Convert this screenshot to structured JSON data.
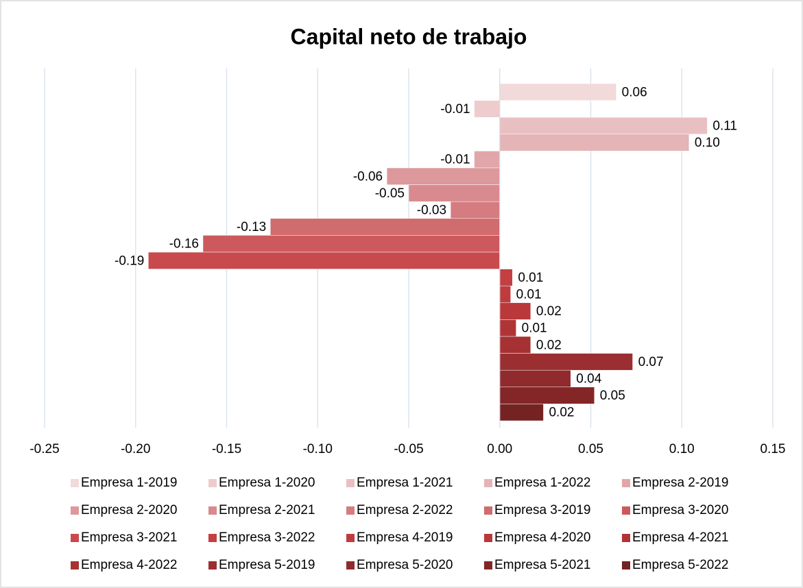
{
  "chart_data": {
    "type": "barh",
    "title": "Capital neto de trabajo",
    "annotation": "1",
    "xlim": [
      -0.25,
      0.15
    ],
    "xticks": [
      -0.25,
      {
        "value": -0.2,
        "label": "-0.20"
      },
      -0.15,
      {
        "value": -0.1,
        "label": "-0.10"
      },
      -0.05,
      {
        "value": 0,
        "label": "0.00"
      },
      0.05,
      {
        "value": 0.1,
        "label": "0.10"
      },
      0.15
    ],
    "grid": true,
    "legend": "bottom",
    "series": [
      {
        "name": "Empresa 1-2019",
        "color": "#f2d9da",
        "values": [
          0.064
        ],
        "value_labels": [
          "0.06"
        ]
      },
      {
        "name": "Empresa 1-2020",
        "color": "#eecccd",
        "values": [
          -0.014
        ],
        "value_labels": [
          "-0.01"
        ]
      },
      {
        "name": "Empresa 1-2021",
        "color": "#e9c0c2",
        "values": [
          0.114
        ],
        "value_labels": [
          "0.11"
        ]
      },
      {
        "name": "Empresa 1-2022",
        "color": "#e5b4b6",
        "values": [
          0.104
        ],
        "value_labels": [
          "0.10"
        ]
      },
      {
        "name": "Empresa 2-2019",
        "color": "#e1a6a9",
        "values": [
          -0.014
        ],
        "value_labels": [
          "-0.01"
        ]
      },
      {
        "name": "Empresa 2-2020",
        "color": "#dc989b",
        "values": [
          -0.062
        ],
        "value_labels": [
          "-0.06"
        ]
      },
      {
        "name": "Empresa 2-2021",
        "color": "#d98a8e",
        "values": [
          -0.05
        ],
        "value_labels": [
          "-0.05"
        ]
      },
      {
        "name": "Empresa 2-2022",
        "color": "#d57c80",
        "values": [
          -0.027
        ],
        "value_labels": [
          "-0.03"
        ]
      },
      {
        "name": "Empresa 3-2019",
        "color": "#d06b6e",
        "values": [
          -0.126
        ],
        "value_labels": [
          "-0.13"
        ]
      },
      {
        "name": "Empresa 3-2020",
        "color": "#cc5a5d",
        "values": [
          -0.163
        ],
        "value_labels": [
          "-0.16"
        ]
      },
      {
        "name": "Empresa 3-2021",
        "color": "#c84a4c",
        "values": [
          -0.193
        ],
        "value_labels": [
          "-0.19"
        ]
      },
      {
        "name": "Empresa 3-2022",
        "color": "#c43f42",
        "values": [
          0.007
        ],
        "value_labels": [
          "0.01"
        ]
      },
      {
        "name": "Empresa 4-2019",
        "color": "#c03b3e",
        "values": [
          0.006
        ],
        "value_labels": [
          "0.01"
        ]
      },
      {
        "name": "Empresa 4-2020",
        "color": "#b9383a",
        "values": [
          0.017
        ],
        "value_labels": [
          "0.02"
        ]
      },
      {
        "name": "Empresa 4-2021",
        "color": "#b03436",
        "values": [
          0.009
        ],
        "value_labels": [
          "0.01"
        ]
      },
      {
        "name": "Empresa 4-2022",
        "color": "#a53133",
        "values": [
          0.017
        ],
        "value_labels": [
          "0.02"
        ]
      },
      {
        "name": "Empresa 5-2019",
        "color": "#9b2e30",
        "values": [
          0.073
        ],
        "value_labels": [
          "0.07"
        ]
      },
      {
        "name": "Empresa 5-2020",
        "color": "#902a2c",
        "values": [
          0.039
        ],
        "value_labels": [
          "0.04"
        ]
      },
      {
        "name": "Empresa 5-2021",
        "color": "#842628",
        "values": [
          0.052
        ],
        "value_labels": [
          "0.05"
        ]
      },
      {
        "name": "Empresa 5-2022",
        "color": "#752223",
        "values": [
          0.024
        ],
        "value_labels": [
          "0.02"
        ]
      }
    ]
  }
}
